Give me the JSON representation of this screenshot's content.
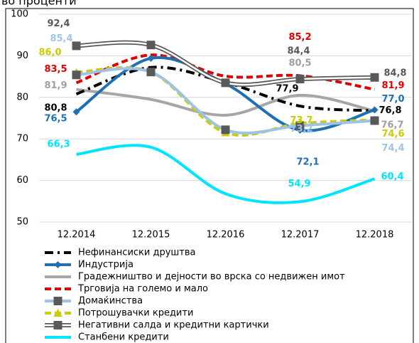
{
  "chart_data": {
    "type": "line",
    "title": "во проценти",
    "categories": [
      "12.2014",
      "12.2015",
      "12.2016",
      "12.2017",
      "12.2018"
    ],
    "ylim": [
      50,
      100
    ],
    "yticks": [
      50,
      60,
      70,
      80,
      90,
      100
    ],
    "grid": true,
    "legend": "bottom",
    "series": [
      {
        "name": "Нефинансиски друштва",
        "color": "#000000",
        "label_color": "#000000",
        "style": "dashdot",
        "marker": null,
        "values": [
          80.8,
          87.2,
          83.6,
          77.9,
          76.8
        ],
        "value_labels": [
          "80,8",
          null,
          null,
          "77,9",
          "76,8"
        ]
      },
      {
        "name": "Индустрија",
        "color": "#1f6fb5",
        "label_color": "#1f6fb5",
        "style": "solid",
        "marker": "diamond",
        "values": [
          76.5,
          89.4,
          83.3,
          72.1,
          77.0
        ],
        "value_labels": [
          "76,5",
          null,
          null,
          "72,1",
          "77,0"
        ]
      },
      {
        "name": "Градежништво и дејности во врска со недвижен имот",
        "color": "#a6a6a6",
        "label_color": "#a0a0a0",
        "style": "solid",
        "marker": null,
        "values": [
          81.9,
          79.5,
          75.7,
          80.5,
          76.7
        ],
        "value_labels": [
          "81,9",
          null,
          null,
          "80,5",
          "76,7"
        ]
      },
      {
        "name": "Трговија на големо и мало",
        "color": "#e00000",
        "label_color": "#e00000",
        "style": "dash",
        "marker": null,
        "values": [
          83.5,
          90.2,
          85.1,
          85.2,
          81.9
        ],
        "value_labels": [
          "83,5",
          null,
          null,
          "85,2",
          "81,9"
        ]
      },
      {
        "name": "Домаќинства",
        "color": "#9dc3e6",
        "label_color": "#9dc3e6",
        "style": "solid",
        "marker": "square",
        "values": [
          85.4,
          86.1,
          72.2,
          73.2,
          74.4
        ],
        "value_labels": [
          "85,4",
          null,
          null,
          "73,2",
          "74,4"
        ]
      },
      {
        "name": "Потрошувачки кредити",
        "color": "#cccc00",
        "label_color": "#cccc00",
        "style": "dash",
        "marker": "triangle",
        "values": [
          86.0,
          86.1,
          71.5,
          73.7,
          74.6
        ],
        "value_labels": [
          "86,0",
          null,
          null,
          "73,7",
          "74,6"
        ]
      },
      {
        "name": "Негативни салда и кредитни картички",
        "color": "#595959",
        "label_color": "#595959",
        "style": "double",
        "marker": "square",
        "values": [
          92.4,
          92.6,
          83.5,
          84.4,
          84.8
        ],
        "value_labels": [
          "92,4",
          null,
          null,
          "84,4",
          "84,8"
        ]
      },
      {
        "name": "Станбени кредити",
        "color": "#00e5ff",
        "label_color": "#00e5ff",
        "style": "solid",
        "marker": null,
        "values": [
          66.3,
          68.0,
          56.8,
          54.9,
          60.4
        ],
        "value_labels": [
          "66,3",
          null,
          null,
          "54,9",
          "60,4"
        ]
      }
    ]
  }
}
